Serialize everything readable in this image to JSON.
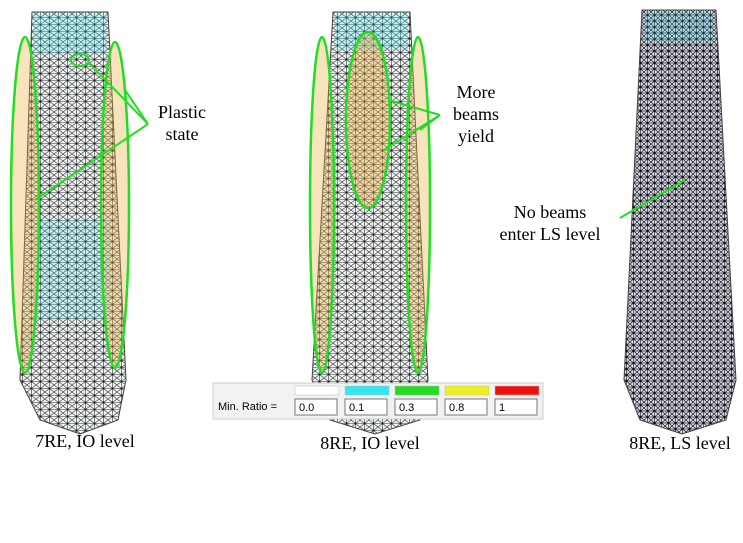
{
  "panels": [
    {
      "annotation": [
        "Plastic",
        "state"
      ],
      "caption": "7RE, IO level"
    },
    {
      "annotation": [
        "More",
        "beams",
        "yield"
      ],
      "caption": "8RE, IO level"
    },
    {
      "annotation": [
        "No beams",
        "enter LS level"
      ],
      "caption": "8RE, LS level"
    }
  ],
  "legend": {
    "label": "Min. Ratio =",
    "boxes": [
      {
        "color": "#ffffff",
        "value": "0.0"
      },
      {
        "color": "#33e6f2",
        "value": "0.1"
      },
      {
        "color": "#22dd22",
        "value": "0.3"
      },
      {
        "color": "#eeee22",
        "value": "0.8"
      },
      {
        "color": "#ee1111",
        "value": "1"
      }
    ]
  }
}
